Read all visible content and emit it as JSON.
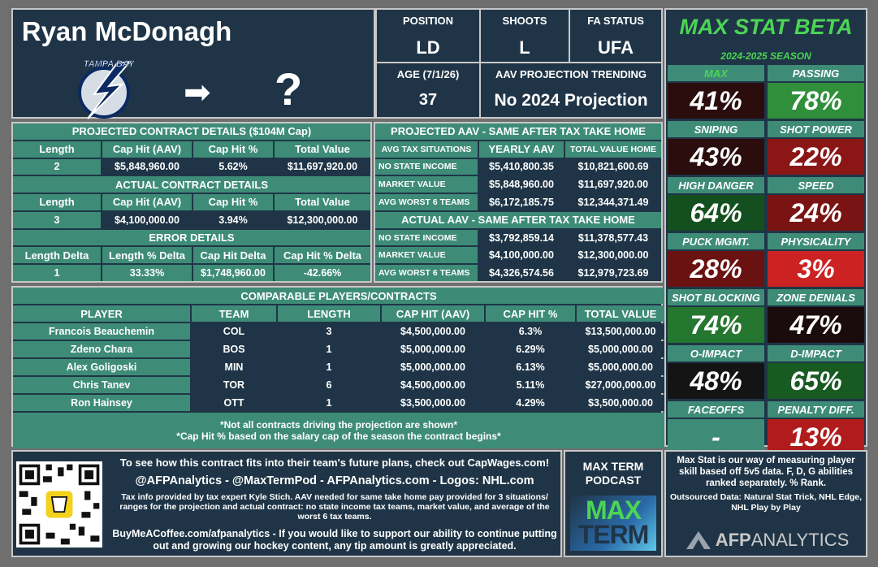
{
  "player": {
    "name": "Ryan McDonagh",
    "team_logo_text": "TAMPA BAY",
    "arrow": "➡",
    "destination": "?"
  },
  "info": {
    "position_label": "POSITION",
    "position": "LD",
    "shoots_label": "SHOOTS",
    "shoots": "L",
    "fa_label": "FA STATUS",
    "fa": "UFA",
    "age_label": "AGE (7/1/26)",
    "age": "37",
    "aav_trend_label": "AAV PROJECTION TRENDING",
    "aav_trend": "No 2024 Projection"
  },
  "projected": {
    "title": "PROJECTED CONTRACT DETAILS ($104M Cap)",
    "headers": [
      "Length",
      "Cap Hit (AAV)",
      "Cap Hit %",
      "Total Value"
    ],
    "values": [
      "2",
      "$5,848,960.00",
      "5.62%",
      "$11,697,920.00"
    ]
  },
  "actual": {
    "title": "ACTUAL CONTRACT DETAILS",
    "headers": [
      "Length",
      "Cap Hit (AAV)",
      "Cap Hit %",
      "Total Value"
    ],
    "values": [
      "3",
      "$4,100,000.00",
      "3.94%",
      "$12,300,000.00"
    ]
  },
  "error": {
    "title": "ERROR DETAILS",
    "headers": [
      "Length Delta",
      "Length % Delta",
      "Cap Hit Delta",
      "Cap Hit % Delta"
    ],
    "values": [
      "1",
      "33.33%",
      "$1,748,960.00",
      "-42.66%"
    ]
  },
  "proj_aav": {
    "title": "PROJECTED AAV - SAME AFTER TAX TAKE HOME",
    "headers": [
      "AVG TAX SITUATIONS",
      "YEARLY AAV",
      "TOTAL VALUE HOME"
    ],
    "rows": [
      [
        "NO STATE INCOME",
        "$5,410,800.35",
        "$10,821,600.69"
      ],
      [
        "MARKET VALUE",
        "$5,848,960.00",
        "$11,697,920.00"
      ],
      [
        "AVG WORST 6 TEAMS",
        "$6,172,185.75",
        "$12,344,371.49"
      ]
    ]
  },
  "act_aav": {
    "title": "ACTUAL AAV - SAME AFTER TAX TAKE HOME",
    "rows": [
      [
        "NO STATE INCOME",
        "$3,792,859.14",
        "$11,378,577.43"
      ],
      [
        "MARKET VALUE",
        "$4,100,000.00",
        "$12,300,000.00"
      ],
      [
        "AVG WORST 6 TEAMS",
        "$4,326,574.56",
        "$12,979,723.69"
      ]
    ]
  },
  "comparables": {
    "title": "COMPARABLE PLAYERS/CONTRACTS",
    "headers": [
      "PLAYER",
      "TEAM",
      "LENGTH",
      "CAP HIT (AAV)",
      "CAP HIT %",
      "TOTAL VALUE"
    ],
    "rows": [
      [
        "Francois Beauchemin",
        "COL",
        "3",
        "$4,500,000.00",
        "6.3%",
        "$13,500,000.00"
      ],
      [
        "Zdeno Chara",
        "BOS",
        "1",
        "$5,000,000.00",
        "6.29%",
        "$5,000,000.00"
      ],
      [
        "Alex Goligoski",
        "MIN",
        "1",
        "$5,000,000.00",
        "6.13%",
        "$5,000,000.00"
      ],
      [
        "Chris Tanev",
        "TOR",
        "6",
        "$4,500,000.00",
        "5.11%",
        "$27,000,000.00"
      ],
      [
        "Ron Hainsey",
        "OTT",
        "1",
        "$3,500,000.00",
        "4.29%",
        "$3,500,000.00"
      ]
    ],
    "note1": "*Not all contracts driving the projection are shown*",
    "note2": "*Cap Hit % based on the salary cap of the season the contract begins*"
  },
  "maxstat": {
    "title": "MAX STAT BETA",
    "season": "2024-2025 SEASON",
    "stats": [
      {
        "label": "MAX",
        "value": "41%",
        "color": "#2b0d0d",
        "label_color": "#4cd455"
      },
      {
        "label": "PASSING",
        "value": "78%",
        "color": "#2f8f3a",
        "label_color": "#ffffff"
      },
      {
        "label": "SNIPING",
        "value": "43%",
        "color": "#2b0d0d",
        "label_color": "#ffffff"
      },
      {
        "label": "SHOT POWER",
        "value": "22%",
        "color": "#8a1616",
        "label_color": "#ffffff"
      },
      {
        "label": "HIGH DANGER",
        "value": "64%",
        "color": "#14501f",
        "label_color": "#ffffff"
      },
      {
        "label": "SPEED",
        "value": "24%",
        "color": "#7a1414",
        "label_color": "#ffffff"
      },
      {
        "label": "PUCK MGMT.",
        "value": "28%",
        "color": "#6a1212",
        "label_color": "#ffffff"
      },
      {
        "label": "PHYSICALITY",
        "value": "3%",
        "color": "#cc2222",
        "label_color": "#ffffff"
      },
      {
        "label": "SHOT BLOCKING",
        "value": "74%",
        "color": "#25762f",
        "label_color": "#ffffff"
      },
      {
        "label": "ZONE DENIALS",
        "value": "47%",
        "color": "#1a0c0c",
        "label_color": "#ffffff"
      },
      {
        "label": "O-IMPACT",
        "value": "48%",
        "color": "#141414",
        "label_color": "#ffffff"
      },
      {
        "label": "D-IMPACT",
        "value": "65%",
        "color": "#175a22",
        "label_color": "#ffffff"
      },
      {
        "label": "FACEOFFS",
        "value": "-",
        "color": "#3e8c77",
        "label_color": "#ffffff"
      },
      {
        "label": "PENALTY DIFF.",
        "value": "13%",
        "color": "#b01c1c",
        "label_color": "#ffffff"
      }
    ]
  },
  "footer": {
    "line1": "To see how this contract fits into their team's future plans, check out CapWages.com!",
    "line2": "@AFPAnalytics - @MaxTermPod - AFPAnalytics.com - Logos: NHL.com",
    "line3": "Tax info provided by tax expert Kyle Stich. AAV needed for same take home pay provided for 3 situations/ ranges for the projection and actual contract: no state income tax teams, market value, and average of the worst 6 tax teams.",
    "line4": "BuyMeACoffee.com/afpanalytics - If you would like to support our ability to continue putting out and growing our hockey content, any tip amount is greatly appreciated.",
    "podcast_title": "MAX TERM PODCAST",
    "podcast_logo_1": "MAX",
    "podcast_logo_2": "TERM",
    "maxstat_desc": "Max Stat is our way of measuring player skill based off 5v5 data. F, D, G abilities ranked separately. % Rank.",
    "outsourced": "Outsourced Data: Natural Stat Trick, NHL Edge, NHL Play by Play",
    "brand_1": "AFP",
    "brand_2": "ANALYTICS"
  }
}
